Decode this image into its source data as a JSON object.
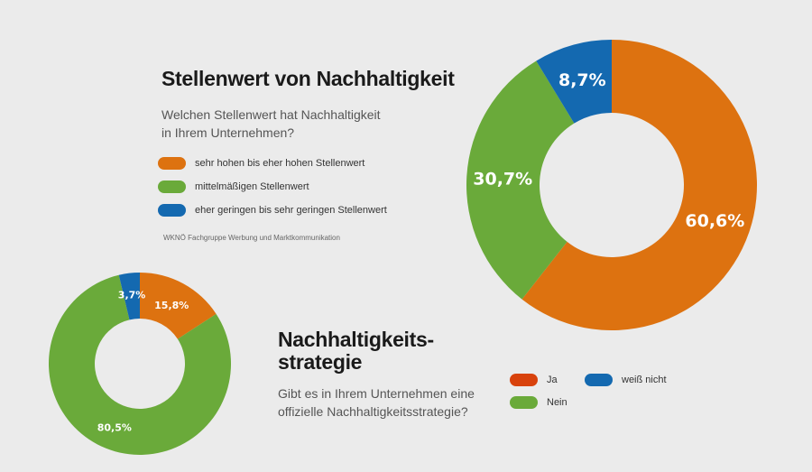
{
  "colors": {
    "orange": "#dd7210",
    "green": "#6aaa3a",
    "blue": "#1469b0",
    "red_orange": "#d8420c"
  },
  "chart_data": [
    {
      "type": "pie",
      "donut": true,
      "title": "Stellenwert von Nachhaltigkeit",
      "subtitle": [
        "Welchen Stellenwert hat Nachhaltigkeit",
        "in Ihrem Unternehmen?"
      ],
      "legend": [
        "sehr hohen bis eher hohen Stellenwert",
        "mittelmäßigen Stellenwert",
        "eher geringen bis sehr geringen Stellenwert"
      ],
      "legend_placement": "left",
      "source": "WKNÖ Fachgruppe Werbung und Marktkommunikation",
      "slices": [
        {
          "label": "sehr hohen bis eher hohen Stellenwert",
          "value": 60.6,
          "text": "60,6%",
          "color": "#dd7210"
        },
        {
          "label": "mittelmäßigen Stellenwert",
          "value": 30.7,
          "text": "30,7%",
          "color": "#6aaa3a"
        },
        {
          "label": "eher geringen bis sehr geringen Stellenwert",
          "value": 8.7,
          "text": "8,7%",
          "color": "#1469b0"
        }
      ]
    },
    {
      "type": "pie",
      "donut": true,
      "title": [
        "Nachhaltigkeits-",
        "strategie"
      ],
      "subtitle": [
        "Gibt es in Ihrem Unternehmen eine",
        "offizielle Nachhaltigkeitsstrategie?"
      ],
      "legend": [
        "Ja",
        "weiß nicht",
        "Nein"
      ],
      "legend_placement": "bottom-right",
      "slices": [
        {
          "label": "Ja",
          "value": 15.8,
          "text": "15,8%",
          "color": "#dd7210"
        },
        {
          "label": "Nein",
          "value": 80.5,
          "text": "80,5%",
          "color": "#6aaa3a"
        },
        {
          "label": "weiß nicht",
          "value": 3.7,
          "text": "3,7%",
          "color": "#1469b0"
        }
      ]
    }
  ]
}
